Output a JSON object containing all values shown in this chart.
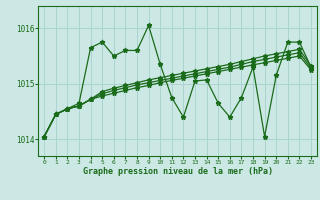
{
  "xlabel": "Graphe pression niveau de la mer (hPa)",
  "bg_color": "#cce8e4",
  "grid_color": "#aad4d0",
  "line_color": "#1a6b1a",
  "xlim": [
    -0.5,
    23.5
  ],
  "ylim": [
    1013.7,
    1016.4
  ],
  "yticks": [
    1014,
    1015,
    1016
  ],
  "xticks": [
    0,
    1,
    2,
    3,
    4,
    5,
    6,
    7,
    8,
    9,
    10,
    11,
    12,
    13,
    14,
    15,
    16,
    17,
    18,
    19,
    20,
    21,
    22,
    23
  ],
  "series": [
    [
      1014.05,
      1014.45,
      1014.55,
      1014.6,
      1014.72,
      1014.78,
      1014.83,
      1014.88,
      1014.93,
      1014.97,
      1015.02,
      1015.06,
      1015.1,
      1015.14,
      1015.18,
      1015.22,
      1015.26,
      1015.3,
      1015.34,
      1015.38,
      1015.42,
      1015.46,
      1015.5,
      1015.25
    ],
    [
      1014.05,
      1014.45,
      1014.55,
      1014.6,
      1014.72,
      1014.82,
      1014.88,
      1014.93,
      1014.98,
      1015.02,
      1015.06,
      1015.1,
      1015.14,
      1015.18,
      1015.22,
      1015.26,
      1015.3,
      1015.35,
      1015.4,
      1015.44,
      1015.48,
      1015.52,
      1015.56,
      1015.28
    ],
    [
      1014.05,
      1014.45,
      1014.55,
      1014.6,
      1014.72,
      1014.86,
      1014.92,
      1014.97,
      1015.02,
      1015.07,
      1015.11,
      1015.15,
      1015.19,
      1015.23,
      1015.27,
      1015.31,
      1015.35,
      1015.4,
      1015.45,
      1015.5,
      1015.54,
      1015.58,
      1015.62,
      1015.32
    ],
    [
      1014.05,
      1014.45,
      1014.55,
      1014.65,
      1015.65,
      1015.75,
      1015.5,
      1015.6,
      1015.6,
      1016.05,
      1015.35,
      1014.75,
      1014.4,
      1015.05,
      1015.07,
      1014.65,
      1014.4,
      1014.75,
      1015.3,
      1014.05,
      1015.15,
      1015.75,
      1015.75,
      1015.3
    ]
  ]
}
